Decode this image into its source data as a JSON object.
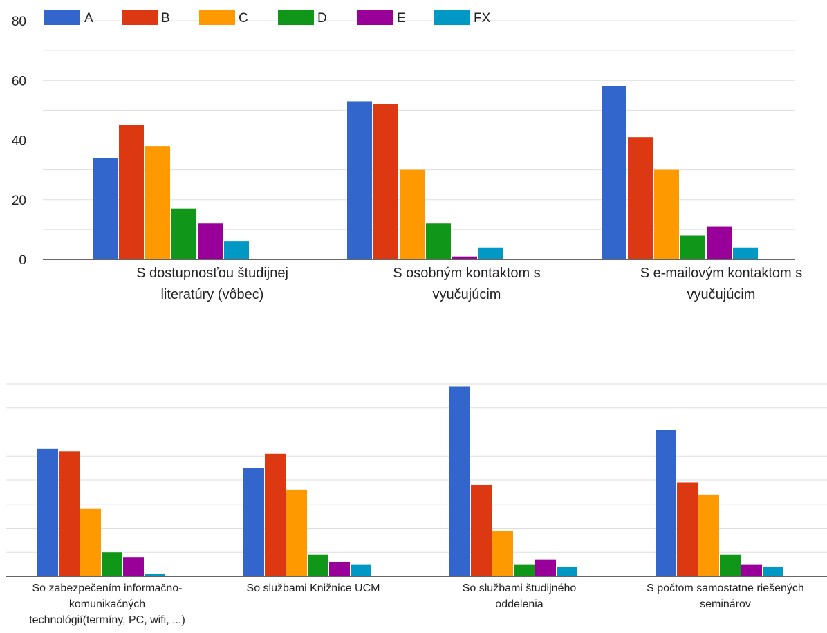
{
  "colors": {
    "A": "#3366cc",
    "B": "#dc3912",
    "C": "#ff9900",
    "D": "#109618",
    "E": "#990099",
    "FX": "#0099c6",
    "grid": "#dddddd",
    "axis": "#333333"
  },
  "chart_data": [
    {
      "type": "bar",
      "title": "",
      "legend_position": "top",
      "legend": [
        "A",
        "B",
        "C",
        "D",
        "E",
        "FX"
      ],
      "categories": [
        [
          "S dostupnosťou študijnej",
          "literatúry (vôbec)"
        ],
        [
          "S osobným kontaktom s",
          "vyučujúcim"
        ],
        [
          "S e-mailovým kontaktom s",
          "vyučujúcim"
        ]
      ],
      "series": [
        {
          "name": "A",
          "values": [
            34,
            53,
            58
          ]
        },
        {
          "name": "B",
          "values": [
            45,
            52,
            41
          ]
        },
        {
          "name": "C",
          "values": [
            38,
            30,
            30
          ]
        },
        {
          "name": "D",
          "values": [
            17,
            12,
            8
          ]
        },
        {
          "name": "E",
          "values": [
            12,
            1,
            11
          ]
        },
        {
          "name": "FX",
          "values": [
            6,
            4,
            4
          ]
        }
      ],
      "y_ticks": [
        "0",
        "20",
        "40",
        "60",
        "80"
      ],
      "ylim": [
        0,
        80
      ],
      "grid": true
    },
    {
      "type": "bar",
      "title": "",
      "categories": [
        [
          "So zabezpečením informačno-",
          "komunikačných",
          "technológií(termíny, PC, wifi, ...)"
        ],
        [
          "So službami Knižnice UCM"
        ],
        [
          "So službami študijného",
          "oddelenia"
        ],
        [
          "S počtom samostatne riešených",
          "seminárov"
        ]
      ],
      "series": [
        {
          "name": "A",
          "values": [
            53,
            45,
            79,
            61
          ]
        },
        {
          "name": "B",
          "values": [
            52,
            51,
            38,
            39
          ]
        },
        {
          "name": "C",
          "values": [
            28,
            36,
            19,
            34
          ]
        },
        {
          "name": "D",
          "values": [
            10,
            9,
            5,
            9
          ]
        },
        {
          "name": "E",
          "values": [
            8,
            6,
            7,
            5
          ]
        },
        {
          "name": "FX",
          "values": [
            1,
            5,
            4,
            4
          ]
        }
      ],
      "ylim": [
        0,
        80
      ],
      "grid": true
    }
  ]
}
